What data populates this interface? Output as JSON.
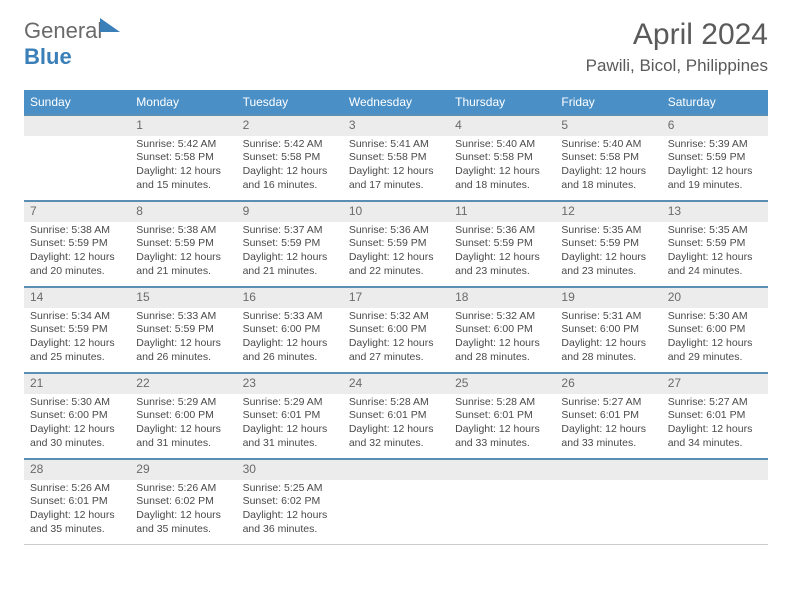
{
  "logo": {
    "word1": "General",
    "word2": "Blue"
  },
  "title": "April 2024",
  "location": "Pawili, Bicol, Philippines",
  "colors": {
    "header_bg": "#4a90c7",
    "week_border": "#5a8eb5",
    "daynum_bg": "#ececec",
    "text": "#4a4a4a",
    "logo_blue": "#3b7fb9"
  },
  "weekdays": [
    "Sunday",
    "Monday",
    "Tuesday",
    "Wednesday",
    "Thursday",
    "Friday",
    "Saturday"
  ],
  "weeks": [
    [
      {
        "n": "",
        "empty": true
      },
      {
        "n": "1",
        "sunrise": "5:42 AM",
        "sunset": "5:58 PM",
        "daylight": "12 hours and 15 minutes."
      },
      {
        "n": "2",
        "sunrise": "5:42 AM",
        "sunset": "5:58 PM",
        "daylight": "12 hours and 16 minutes."
      },
      {
        "n": "3",
        "sunrise": "5:41 AM",
        "sunset": "5:58 PM",
        "daylight": "12 hours and 17 minutes."
      },
      {
        "n": "4",
        "sunrise": "5:40 AM",
        "sunset": "5:58 PM",
        "daylight": "12 hours and 18 minutes."
      },
      {
        "n": "5",
        "sunrise": "5:40 AM",
        "sunset": "5:58 PM",
        "daylight": "12 hours and 18 minutes."
      },
      {
        "n": "6",
        "sunrise": "5:39 AM",
        "sunset": "5:59 PM",
        "daylight": "12 hours and 19 minutes."
      }
    ],
    [
      {
        "n": "7",
        "sunrise": "5:38 AM",
        "sunset": "5:59 PM",
        "daylight": "12 hours and 20 minutes."
      },
      {
        "n": "8",
        "sunrise": "5:38 AM",
        "sunset": "5:59 PM",
        "daylight": "12 hours and 21 minutes."
      },
      {
        "n": "9",
        "sunrise": "5:37 AM",
        "sunset": "5:59 PM",
        "daylight": "12 hours and 21 minutes."
      },
      {
        "n": "10",
        "sunrise": "5:36 AM",
        "sunset": "5:59 PM",
        "daylight": "12 hours and 22 minutes."
      },
      {
        "n": "11",
        "sunrise": "5:36 AM",
        "sunset": "5:59 PM",
        "daylight": "12 hours and 23 minutes."
      },
      {
        "n": "12",
        "sunrise": "5:35 AM",
        "sunset": "5:59 PM",
        "daylight": "12 hours and 23 minutes."
      },
      {
        "n": "13",
        "sunrise": "5:35 AM",
        "sunset": "5:59 PM",
        "daylight": "12 hours and 24 minutes."
      }
    ],
    [
      {
        "n": "14",
        "sunrise": "5:34 AM",
        "sunset": "5:59 PM",
        "daylight": "12 hours and 25 minutes."
      },
      {
        "n": "15",
        "sunrise": "5:33 AM",
        "sunset": "5:59 PM",
        "daylight": "12 hours and 26 minutes."
      },
      {
        "n": "16",
        "sunrise": "5:33 AM",
        "sunset": "6:00 PM",
        "daylight": "12 hours and 26 minutes."
      },
      {
        "n": "17",
        "sunrise": "5:32 AM",
        "sunset": "6:00 PM",
        "daylight": "12 hours and 27 minutes."
      },
      {
        "n": "18",
        "sunrise": "5:32 AM",
        "sunset": "6:00 PM",
        "daylight": "12 hours and 28 minutes."
      },
      {
        "n": "19",
        "sunrise": "5:31 AM",
        "sunset": "6:00 PM",
        "daylight": "12 hours and 28 minutes."
      },
      {
        "n": "20",
        "sunrise": "5:30 AM",
        "sunset": "6:00 PM",
        "daylight": "12 hours and 29 minutes."
      }
    ],
    [
      {
        "n": "21",
        "sunrise": "5:30 AM",
        "sunset": "6:00 PM",
        "daylight": "12 hours and 30 minutes."
      },
      {
        "n": "22",
        "sunrise": "5:29 AM",
        "sunset": "6:00 PM",
        "daylight": "12 hours and 31 minutes."
      },
      {
        "n": "23",
        "sunrise": "5:29 AM",
        "sunset": "6:01 PM",
        "daylight": "12 hours and 31 minutes."
      },
      {
        "n": "24",
        "sunrise": "5:28 AM",
        "sunset": "6:01 PM",
        "daylight": "12 hours and 32 minutes."
      },
      {
        "n": "25",
        "sunrise": "5:28 AM",
        "sunset": "6:01 PM",
        "daylight": "12 hours and 33 minutes."
      },
      {
        "n": "26",
        "sunrise": "5:27 AM",
        "sunset": "6:01 PM",
        "daylight": "12 hours and 33 minutes."
      },
      {
        "n": "27",
        "sunrise": "5:27 AM",
        "sunset": "6:01 PM",
        "daylight": "12 hours and 34 minutes."
      }
    ],
    [
      {
        "n": "28",
        "sunrise": "5:26 AM",
        "sunset": "6:01 PM",
        "daylight": "12 hours and 35 minutes."
      },
      {
        "n": "29",
        "sunrise": "5:26 AM",
        "sunset": "6:02 PM",
        "daylight": "12 hours and 35 minutes."
      },
      {
        "n": "30",
        "sunrise": "5:25 AM",
        "sunset": "6:02 PM",
        "daylight": "12 hours and 36 minutes."
      },
      {
        "n": "",
        "empty": true
      },
      {
        "n": "",
        "empty": true
      },
      {
        "n": "",
        "empty": true
      },
      {
        "n": "",
        "empty": true
      }
    ]
  ],
  "labels": {
    "sunrise_prefix": "Sunrise: ",
    "sunset_prefix": "Sunset: ",
    "daylight_prefix": "Daylight: "
  },
  "typography": {
    "title_fontsize": 30,
    "location_fontsize": 17,
    "weekday_fontsize": 12,
    "daynum_fontsize": 12,
    "detail_fontsize": 10.5
  }
}
